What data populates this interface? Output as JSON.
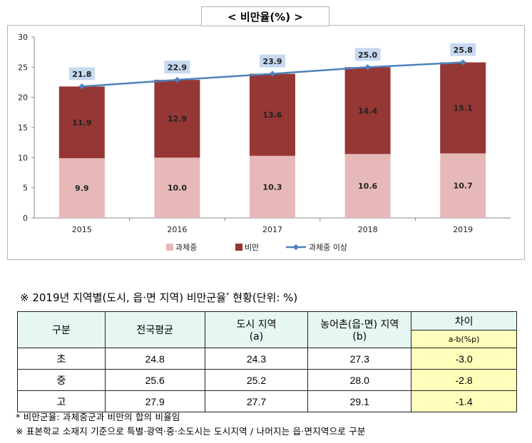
{
  "chart_data": {
    "type": "bar",
    "stacked": true,
    "title": "<  비만율(%)  >",
    "categories": [
      "2015",
      "2016",
      "2017",
      "2018",
      "2019"
    ],
    "series": [
      {
        "name": "과체중",
        "type": "bar",
        "color": "#e6b9b8",
        "values": [
          9.9,
          10.0,
          10.3,
          10.6,
          10.7
        ]
      },
      {
        "name": "비만",
        "type": "bar",
        "color": "#953735",
        "values": [
          11.9,
          12.9,
          13.6,
          14.4,
          15.1
        ]
      },
      {
        "name": "과체중 이상",
        "type": "line",
        "color": "#4f81bd",
        "values": [
          21.8,
          22.9,
          23.9,
          25.0,
          25.8
        ]
      }
    ],
    "ylim": [
      0,
      30
    ],
    "yticks": [
      0,
      5,
      10,
      15,
      20,
      25,
      30
    ],
    "xlabel": "",
    "ylabel": "",
    "legend_position": "bottom"
  },
  "table_section": {
    "title": "※ 2019년 지역별(도시, 읍·면 지역) 비만군율",
    "title_sup": "*",
    "title_tail": " 현황(단위: %)",
    "headers": {
      "col0": "구분",
      "col1": "전국평균",
      "col2_line1": "도시 지역",
      "col2_line2": "(a)",
      "col3_line1": "농어촌(읍·면) 지역",
      "col3_line2": "(b)",
      "col4_line1": "차이",
      "col4_line2": "a-b(%p)"
    },
    "rows": [
      {
        "label": "초",
        "national": "24.8",
        "urban": "24.3",
        "rural": "27.3",
        "diff": "-3.0"
      },
      {
        "label": "중",
        "national": "25.6",
        "urban": "25.2",
        "rural": "28.0",
        "diff": "-2.8"
      },
      {
        "label": "고",
        "national": "27.9",
        "urban": "27.7",
        "rural": "29.1",
        "diff": "-1.4"
      }
    ]
  },
  "notes": [
    "* 비만군율: 과체중군과 비만의 합의 비율임",
    "※ 표본학교 소재지 기준으로 특별·광역·중·소도시는 도시지역 / 나머지는 읍·면지역으로 구분"
  ]
}
